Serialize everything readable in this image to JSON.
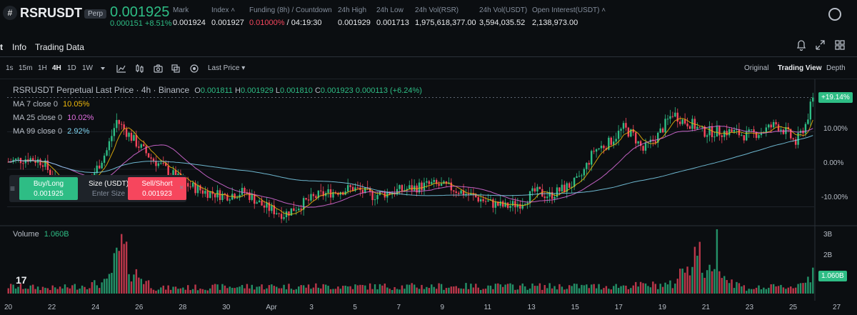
{
  "header": {
    "logo_glyph": "#",
    "symbol": "RSRUSDT",
    "badge": "Perp",
    "last_price": "0.001925",
    "change": "0.000151 +8.51%",
    "stats": [
      {
        "label": "Mark",
        "value": "0.001924"
      },
      {
        "label": "Index ˄",
        "value": "0.001927"
      },
      {
        "label": "Funding (8h) / Countdown",
        "value_neg": "0.01000%",
        "value": " / 04:19:30"
      },
      {
        "label": "24h High",
        "value": "0.001929"
      },
      {
        "label": "24h Low",
        "value": "0.001713"
      },
      {
        "label": "24h Vol(RSR)",
        "value": "1,975,618,377.00"
      },
      {
        "label": "24h Vol(USDT)",
        "value": "3,594,035.52"
      },
      {
        "label": "Open Interest(USDT) ˄",
        "value": "2,138,973.00"
      }
    ]
  },
  "tabs": {
    "chart_fragment": "t",
    "info": "Info",
    "trading_data": "Trading Data"
  },
  "toolbar": {
    "intervals": [
      "1s",
      "15m",
      "1H",
      "4H",
      "1D",
      "1W"
    ],
    "active_interval": "4H",
    "price_type": "Last Price ▾",
    "views": [
      "Original",
      "Trading View",
      "Depth"
    ],
    "active_view": "Trading View"
  },
  "chart": {
    "title": "RSRUSDT Perpetual Last Price · 4h · Binance",
    "ohlc": {
      "o_label": "O",
      "o": "0.001811",
      "h_label": "H",
      "h": "0.001929",
      "l_label": "L",
      "l": "0.001810",
      "c_label": "C",
      "c": "0.001923",
      "chg": "0.000113 (+6.24%)"
    },
    "ma": [
      {
        "label": "MA 7 close 0",
        "value": "10.05%",
        "color": "#f0b90b"
      },
      {
        "label": "MA 25 close 0",
        "value": "10.02%",
        "color": "#e16ee0"
      },
      {
        "label": "MA 99 close 0",
        "value": "2.92%",
        "color": "#7fd4f0"
      }
    ],
    "volume_label": "Volume",
    "volume_value": "1.060B",
    "price_axis": [
      "+19.14%",
      "10.00%",
      "0.00%",
      "-10.00%"
    ],
    "volume_axis": [
      "3B",
      "2B",
      "1.060B"
    ],
    "x_axis": [
      "20",
      "22",
      "24",
      "26",
      "28",
      "30",
      "Apr",
      "3",
      "5",
      "7",
      "9",
      "11",
      "13",
      "15",
      "17",
      "19",
      "21",
      "23",
      "25",
      "27"
    ],
    "tv_logo": "17",
    "colors": {
      "up": "#2ebd85",
      "down": "#f6465d",
      "grid": "#1e2329"
    }
  },
  "trade_panel": {
    "buy_label": "Buy/Long",
    "buy_price": "0.001925",
    "size_label": "Size (USDT)",
    "size_placeholder": "Enter Size",
    "sell_label": "Sell/Short",
    "sell_price": "0.001923",
    "close_glyph": "×",
    "handle_glyph": "≡"
  },
  "chart_data": {
    "type": "candlestick",
    "title": "RSRUSDT Perpetual Last Price · 4h · Binance",
    "x_ticks": [
      "20",
      "22",
      "24",
      "26",
      "28",
      "30",
      "Apr",
      "3",
      "5",
      "7",
      "9",
      "11",
      "13",
      "15",
      "17",
      "19",
      "21",
      "23",
      "25",
      "27"
    ],
    "y_unit": "percent change",
    "y_ticks": [
      10,
      0,
      -10
    ],
    "ylim": [
      -16,
      24
    ],
    "last_value": 19.14,
    "price_keypoints": [
      [
        0,
        2
      ],
      [
        8,
        3
      ],
      [
        14,
        2
      ],
      [
        20,
        -4
      ],
      [
        28,
        -4
      ],
      [
        34,
        -2
      ],
      [
        40,
        5
      ],
      [
        44,
        13
      ],
      [
        48,
        10
      ],
      [
        52,
        7
      ],
      [
        58,
        3
      ],
      [
        64,
        0
      ],
      [
        72,
        -4
      ],
      [
        80,
        -6
      ],
      [
        88,
        -7
      ],
      [
        96,
        -6
      ],
      [
        104,
        -10
      ],
      [
        112,
        -12
      ],
      [
        120,
        -9
      ],
      [
        126,
        -7
      ],
      [
        132,
        -6
      ],
      [
        140,
        -5
      ],
      [
        148,
        -7
      ],
      [
        156,
        -6
      ],
      [
        164,
        -5
      ],
      [
        172,
        -4
      ],
      [
        180,
        -5
      ],
      [
        188,
        -7
      ],
      [
        196,
        -9
      ],
      [
        202,
        -10
      ],
      [
        208,
        -9
      ],
      [
        214,
        -6
      ],
      [
        220,
        -7
      ],
      [
        226,
        -5
      ],
      [
        232,
        -3
      ],
      [
        238,
        5
      ],
      [
        244,
        7
      ],
      [
        250,
        11
      ],
      [
        254,
        9
      ],
      [
        258,
        5
      ],
      [
        264,
        9
      ],
      [
        270,
        15
      ],
      [
        274,
        13
      ],
      [
        278,
        12
      ],
      [
        282,
        10
      ],
      [
        288,
        10
      ],
      [
        294,
        10
      ],
      [
        300,
        9
      ],
      [
        306,
        10
      ],
      [
        312,
        12
      ],
      [
        316,
        10
      ],
      [
        320,
        7
      ],
      [
        324,
        12
      ],
      [
        327,
        19
      ]
    ],
    "volume_keypoints": [
      [
        0,
        0.4
      ],
      [
        20,
        0.3
      ],
      [
        40,
        0.6
      ],
      [
        46,
        2.6
      ],
      [
        50,
        1.3
      ],
      [
        60,
        0.3
      ],
      [
        100,
        0.4
      ],
      [
        160,
        0.4
      ],
      [
        240,
        0.4
      ],
      [
        270,
        0.5
      ],
      [
        280,
        2.5
      ],
      [
        284,
        0.9
      ],
      [
        288,
        2.7
      ],
      [
        292,
        0.8
      ],
      [
        300,
        0.3
      ],
      [
        320,
        0.4
      ],
      [
        327,
        1.06
      ]
    ],
    "bar_count": 328
  }
}
